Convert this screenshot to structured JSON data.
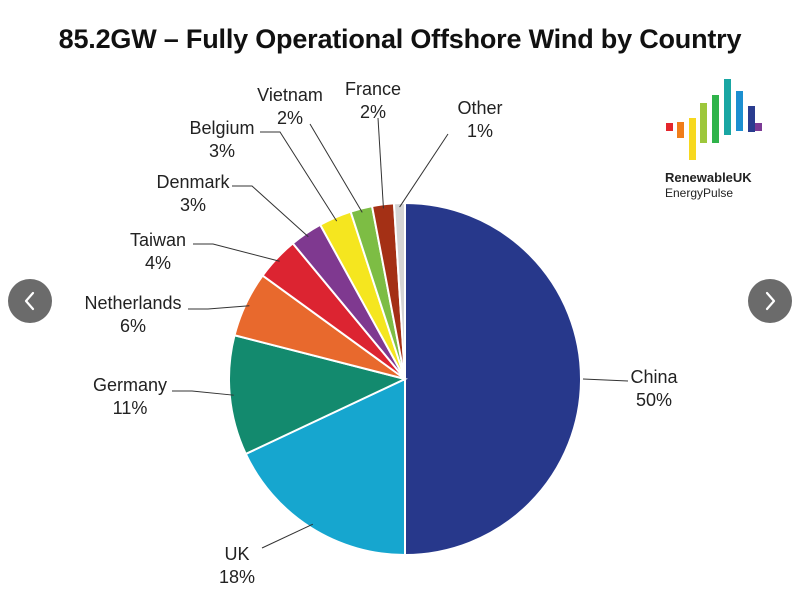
{
  "chart_data": {
    "type": "pie",
    "title": "85.2GW – Fully Operational Offshore Wind by Country",
    "slices": [
      {
        "name": "China",
        "label": "50%",
        "value": 50,
        "color": "#27388b"
      },
      {
        "name": "UK",
        "label": "18%",
        "value": 18,
        "color": "#16a6cf"
      },
      {
        "name": "Germany",
        "label": "11%",
        "value": 11,
        "color": "#138a6e"
      },
      {
        "name": "Netherlands",
        "label": "6%",
        "value": 6,
        "color": "#e8692d"
      },
      {
        "name": "Taiwan",
        "label": "4%",
        "value": 4,
        "color": "#dc2431"
      },
      {
        "name": "Denmark",
        "label": "3%",
        "value": 3,
        "color": "#7f3990"
      },
      {
        "name": "Belgium",
        "label": "3%",
        "value": 3,
        "color": "#f5e61f"
      },
      {
        "name": "Vietnam",
        "label": "2%",
        "value": 2,
        "color": "#7dbd44"
      },
      {
        "name": "France",
        "label": "2%",
        "value": 2,
        "color": "#a43015"
      },
      {
        "name": "Other",
        "label": "1%",
        "value": 1,
        "color": "#d5d5d5"
      }
    ],
    "start": "12 o'clock",
    "direction": "clockwise"
  },
  "logo": {
    "brand": "RenewableUK",
    "product": "EnergyPulse",
    "bar_colors": [
      "#e4262c",
      "#f07d1a",
      "#f7d81f",
      "#9dc73b",
      "#2fb34a",
      "#19a6a3",
      "#1c8fd0",
      "#2a3c8f",
      "#7b3a95"
    ]
  },
  "navigation": {
    "prev_icon": "chevron-left-icon",
    "next_icon": "chevron-right-icon",
    "button_color": "#6b6b6b"
  }
}
